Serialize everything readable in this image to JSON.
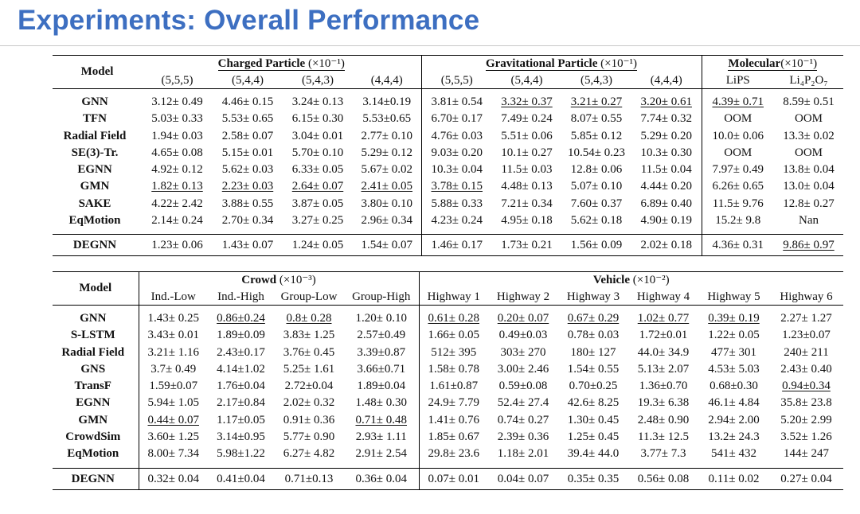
{
  "slide": {
    "title": "Experiments: Overall Performance"
  },
  "table1": {
    "model_header": "Model",
    "groups": [
      {
        "name": "Charged Particle",
        "unit": "(×10⁻¹)",
        "cols": [
          "(5,5,5)",
          "(5,4,4)",
          "(5,4,3)",
          "(4,4,4)"
        ]
      },
      {
        "name": "Gravitational Particle",
        "unit": "(×10⁻¹)",
        "cols": [
          "(5,5,5)",
          "(5,4,4)",
          "(5,4,3)",
          "(4,4,4)"
        ]
      },
      {
        "name": "Molecular",
        "unit": "(×10⁻¹)",
        "cols": [
          "LiPS",
          "Li₄P₂O₇"
        ]
      }
    ],
    "rows": [
      {
        "model": "GNN",
        "values": [
          "3.12± 0.49",
          "4.46± 0.15",
          "3.24± 0.13",
          "3.14±0.19",
          "3.81± 0.54",
          "3.32± 0.37",
          "3.21± 0.27",
          "3.20± 0.61",
          "4.39± 0.71",
          "8.59± 0.51"
        ]
      },
      {
        "model": "TFN",
        "values": [
          "5.03± 0.33",
          "5.53± 0.65",
          "6.15± 0.30",
          "5.53±0.65",
          "6.70± 0.17",
          "7.49± 0.24",
          "8.07± 0.55",
          "7.74± 0.32",
          "OOM",
          "OOM"
        ]
      },
      {
        "model": "Radial Field",
        "values": [
          "1.94± 0.03",
          "2.58± 0.07",
          "3.04± 0.01",
          "2.77± 0.10",
          "4.76± 0.03",
          "5.51± 0.06",
          "5.85± 0.12",
          "5.29± 0.20",
          "10.0± 0.06",
          "13.3± 0.02"
        ]
      },
      {
        "model": "SE(3)-Tr.",
        "values": [
          "4.65± 0.08",
          "5.15± 0.01",
          "5.70± 0.10",
          "5.29± 0.12",
          "9.03± 0.20",
          "10.1± 0.27",
          "10.54± 0.23",
          "10.3± 0.30",
          "OOM",
          "OOM"
        ]
      },
      {
        "model": "EGNN",
        "values": [
          "4.92± 0.12",
          "5.62± 0.03",
          "6.33± 0.05",
          "5.67± 0.02",
          "10.3± 0.04",
          "11.5± 0.03",
          "12.8± 0.06",
          "11.5± 0.04",
          "7.97± 0.49",
          "13.8± 0.04"
        ]
      },
      {
        "model": "GMN",
        "values": [
          "1.82± 0.13",
          "2.23± 0.03",
          "2.64± 0.07",
          "2.41± 0.05",
          "3.78± 0.15",
          "4.48± 0.13",
          "5.07± 0.10",
          "4.44± 0.20",
          "6.26± 0.65",
          "13.0± 0.04"
        ]
      },
      {
        "model": "SAKE",
        "values": [
          "4.22± 2.42",
          "3.88± 0.55",
          "3.87± 0.05",
          "3.80± 0.10",
          "5.88± 0.33",
          "7.21± 0.34",
          "7.60± 0.37",
          "6.89± 0.40",
          "11.5± 9.76",
          "12.8± 0.27"
        ]
      },
      {
        "model": "EqMotion",
        "values": [
          "2.14± 0.24",
          "2.70± 0.34",
          "3.27± 0.25",
          "2.96± 0.34",
          "4.23± 0.24",
          "4.95± 0.18",
          "5.62± 0.18",
          "4.90± 0.19",
          "15.2± 9.8",
          "Nan"
        ]
      }
    ],
    "ours": {
      "model": "DEGNN",
      "values": [
        "1.23± 0.06",
        "1.43± 0.07",
        "1.24± 0.05",
        "1.54± 0.07",
        "1.46± 0.17",
        "1.73± 0.21",
        "1.56± 0.09",
        "2.02± 0.18",
        "4.36± 0.31",
        "9.86± 0.97"
      ]
    }
  },
  "table2": {
    "model_header": "Model",
    "groups": [
      {
        "name": "Crowd",
        "unit": "(×10⁻³)",
        "cols": [
          "Ind.-Low",
          "Ind.-High",
          "Group-Low",
          "Group-High"
        ]
      },
      {
        "name": "Vehicle",
        "unit": "(×10⁻²)",
        "cols": [
          "Highway 1",
          "Highway 2",
          "Highway 3",
          "Highway 4",
          "Highway 5",
          "Highway 6"
        ]
      }
    ],
    "rows": [
      {
        "model": "GNN",
        "values": [
          "1.43± 0.25",
          "0.86±0.24",
          "0.8± 0.28",
          "1.20± 0.10",
          "0.61± 0.28",
          "0.20± 0.07",
          "0.67± 0.29",
          "1.02± 0.77",
          "0.39± 0.19",
          "2.27± 1.27"
        ]
      },
      {
        "model": "S-LSTM",
        "values": [
          "3.43± 0.01",
          "1.89±0.09",
          "3.83± 1.25",
          "2.57±0.49",
          "1.66± 0.05",
          "0.49±0.03",
          "0.78± 0.03",
          "1.72±0.01",
          "1.22± 0.05",
          "1.23±0.07"
        ]
      },
      {
        "model": "Radial Field",
        "values": [
          "3.21± 1.16",
          "2.43±0.17",
          "3.76± 0.45",
          "3.39±0.87",
          "512± 395",
          "303± 270",
          "180± 127",
          "44.0± 34.9",
          "477± 301",
          "240± 211"
        ]
      },
      {
        "model": "GNS",
        "values": [
          "3.7± 0.49",
          "4.14±1.02",
          "5.25± 1.61",
          "3.66±0.71",
          "1.58± 0.78",
          "3.00± 2.46",
          "1.54± 0.55",
          "5.13± 2.07",
          "4.53± 5.03",
          "2.43± 0.40"
        ]
      },
      {
        "model": "TransF",
        "values": [
          "1.59±0.07",
          "1.76±0.04",
          "2.72±0.04",
          "1.89±0.04",
          "1.61±0.87",
          "0.59±0.08",
          "0.70±0.25",
          "1.36±0.70",
          "0.68±0.30",
          "0.94±0.34"
        ]
      },
      {
        "model": "EGNN",
        "values": [
          "5.94± 1.05",
          "2.17±0.84",
          "2.02± 0.32",
          "1.48± 0.30",
          "24.9± 7.79",
          "52.4± 27.4",
          "42.6± 8.25",
          "19.3± 6.38",
          "46.1± 4.84",
          "35.8± 23.8"
        ]
      },
      {
        "model": "GMN",
        "values": [
          "0.44± 0.07",
          "1.17±0.05",
          "0.91± 0.36",
          "0.71± 0.48",
          "1.41± 0.76",
          "0.74± 0.27",
          "1.30± 0.45",
          "2.48± 0.90",
          "2.94± 2.00",
          "5.20± 2.99"
        ]
      },
      {
        "model": "CrowdSim",
        "values": [
          "3.60± 1.25",
          "3.14±0.95",
          "5.77± 0.90",
          "2.93± 1.11",
          "1.85± 0.67",
          "2.39± 0.36",
          "1.25± 0.45",
          "11.3± 12.5",
          "13.2± 24.3",
          "3.52± 1.26"
        ]
      },
      {
        "model": "EqMotion",
        "values": [
          "8.00± 7.34",
          "5.98±1.22",
          "6.27± 4.82",
          "2.91± 2.54",
          "29.8± 23.6",
          "1.18± 2.01",
          "39.4± 44.0",
          "3.77± 7.3",
          "541± 432",
          "144± 247"
        ]
      }
    ],
    "ours": {
      "model": "DEGNN",
      "values": [
        "0.32± 0.04",
        "0.41±0.04",
        "0.71±0.13",
        "0.36± 0.04",
        "0.07± 0.01",
        "0.04± 0.07",
        "0.35± 0.35",
        "0.56± 0.08",
        "0.11± 0.02",
        "0.27± 0.04"
      ]
    }
  }
}
